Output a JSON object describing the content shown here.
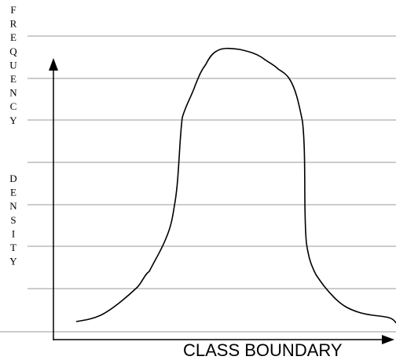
{
  "y_axis_label": [
    [
      "F",
      "R",
      "E",
      "Q",
      "U",
      "E",
      "N",
      "C",
      "Y"
    ],
    [
      "D",
      "E",
      "N",
      "S",
      "I",
      "T",
      "Y"
    ]
  ],
  "x_axis_label": "CLASS BOUNDARY"
}
